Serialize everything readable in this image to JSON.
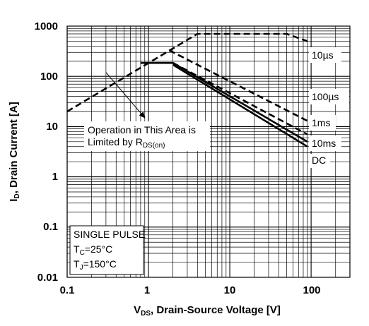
{
  "chart_data": {
    "type": "line",
    "x_scale": "log",
    "y_scale": "log",
    "xlim": [
      0.1,
      300
    ],
    "ylim": [
      0.01,
      1000
    ],
    "grid": true,
    "x_ticks": [
      "0.1",
      "1",
      "10",
      "100"
    ],
    "y_ticks": [
      "1000",
      "100",
      "10",
      "1",
      "0.1",
      "0.01"
    ],
    "xlabel": {
      "main": "V",
      "sub": "DS",
      "rest": ", Drain-Source Voltage [V]"
    },
    "ylabel": {
      "main": "I",
      "sub": "D",
      "rest": ", Drain Current [A]"
    },
    "series": [
      {
        "name": "10µs",
        "style": "dashed",
        "points": [
          [
            0.1,
            20
          ],
          [
            4,
            700
          ],
          [
            50,
            700
          ],
          [
            90,
            500
          ]
        ]
      },
      {
        "name": "100µs",
        "style": "dashed",
        "points": [
          [
            1.8,
            330
          ],
          [
            90,
            13
          ]
        ]
      },
      {
        "name": "1ms",
        "style": "dashed",
        "points": [
          [
            2,
            185
          ],
          [
            90,
            7
          ]
        ]
      },
      {
        "name": "10ms",
        "style": "solid",
        "points": [
          [
            0.8,
            185
          ],
          [
            2,
            185
          ],
          [
            90,
            5
          ]
        ]
      },
      {
        "name": "DC",
        "style": "solid",
        "points": [
          [
            2,
            170
          ],
          [
            90,
            4
          ]
        ]
      }
    ],
    "series_labels": {
      "s0": "10µs",
      "s1": "100µs",
      "s2": "1ms",
      "s3": "10ms",
      "s4": "DC"
    },
    "annotation": {
      "line1": "Operation in This Area is",
      "line2_main": "Limited by R",
      "line2_sub": "DS(on)",
      "arrow_from": [
        0.3,
        120
      ],
      "arrow_to": [
        0.9,
        15
      ]
    },
    "conditions": {
      "line1": "SINGLE PULSE",
      "tc_main": "T",
      "tc_sub": "C",
      "tc_rest": "=25°C",
      "tj_main": "T",
      "tj_sub": "J",
      "tj_rest": "=150°C"
    }
  }
}
